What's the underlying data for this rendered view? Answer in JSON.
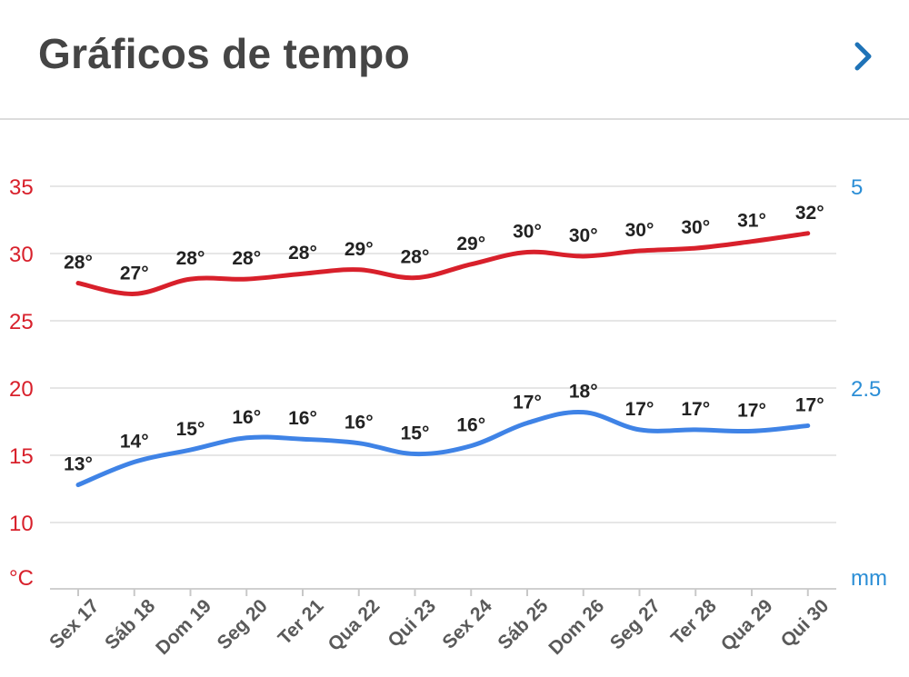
{
  "header": {
    "title": "Gráficos de tempo",
    "next_icon": "chevron-right-icon"
  },
  "colors": {
    "temperature_max": "#d8202b",
    "temperature_min": "#3f83e6",
    "left_axis_text": "#d8202b",
    "right_axis_text": "#2b8ed6",
    "accent": "#1f73b7",
    "grid": "#e6e6e6",
    "labels": "#222222",
    "xlabels": "#5a5a5a"
  },
  "chart_data": {
    "type": "line",
    "categories": [
      "Sex 17",
      "Sáb 18",
      "Dom 19",
      "Seg 20",
      "Ter 21",
      "Qua 22",
      "Qui 23",
      "Sex 24",
      "Sáb 25",
      "Dom 26",
      "Seg 27",
      "Ter 28",
      "Qua 29",
      "Qui 30"
    ],
    "y_left": {
      "unit": "°C",
      "ticks": [
        "35",
        "30",
        "25",
        "20",
        "15",
        "10"
      ],
      "range": [
        5,
        35
      ]
    },
    "y_right": {
      "unit": "mm",
      "ticks": [
        "5",
        "2.5"
      ],
      "range": [
        0,
        5
      ]
    },
    "series": [
      {
        "values": [
          27.8,
          27.0,
          28.1,
          28.1,
          28.5,
          28.8,
          28.2,
          29.2,
          30.1,
          29.8,
          30.2,
          30.4,
          30.9,
          31.5
        ],
        "labels": [
          "28°",
          "27°",
          "28°",
          "28°",
          "28°",
          "29°",
          "28°",
          "29°",
          "30°",
          "30°",
          "30°",
          "30°",
          "31°",
          "32°"
        ]
      },
      {
        "values": [
          12.8,
          14.5,
          15.4,
          16.3,
          16.2,
          15.9,
          15.1,
          15.7,
          17.4,
          18.2,
          16.9,
          16.9,
          16.8,
          17.2
        ],
        "labels": [
          "13°",
          "14°",
          "15°",
          "16°",
          "16°",
          "16°",
          "15°",
          "16°",
          "17°",
          "18°",
          "17°",
          "17°",
          "17°",
          "17°"
        ]
      }
    ],
    "grid": true
  }
}
